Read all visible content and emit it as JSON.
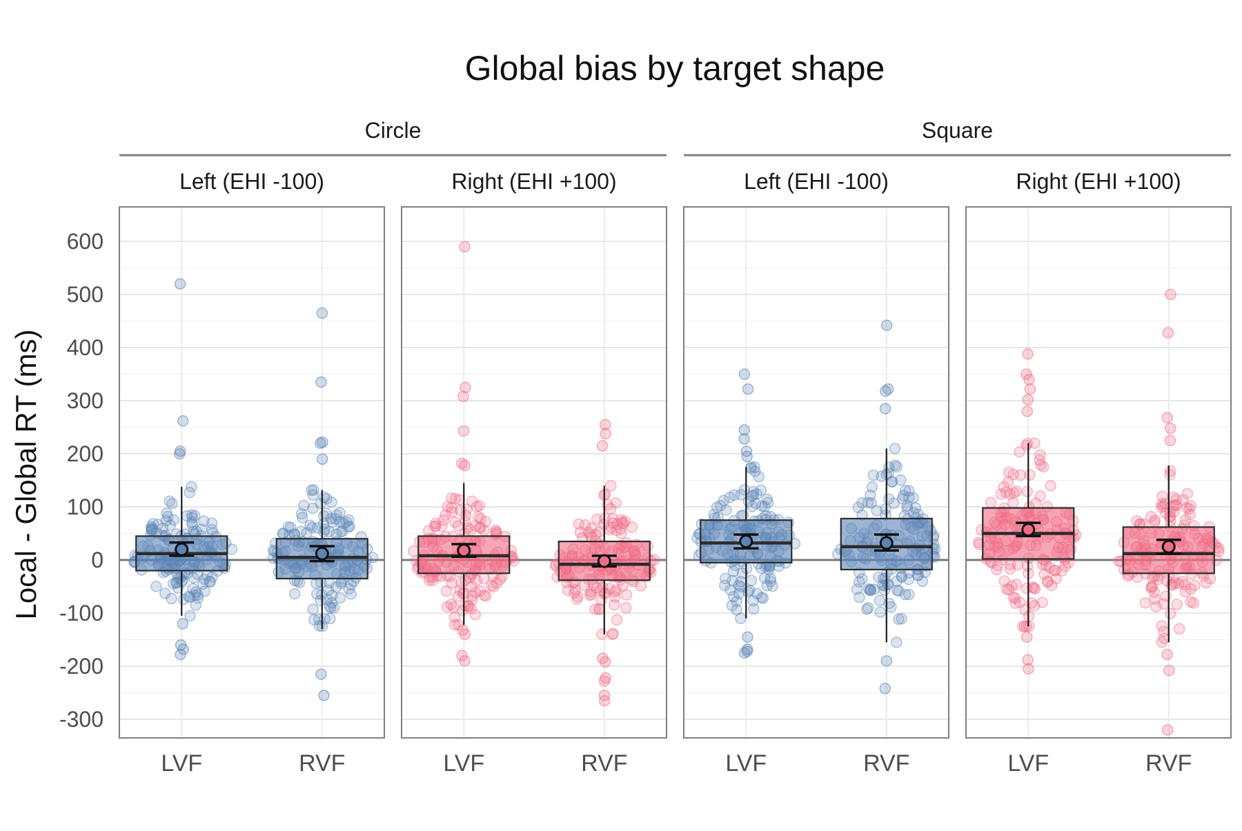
{
  "chart_data": {
    "type": "box",
    "title": "Global bias by target shape",
    "ylabel": "Local - Global RT (ms)",
    "xlabel": "",
    "ylim": [
      -335,
      665
    ],
    "y_ticks": [
      -300,
      -200,
      -100,
      0,
      100,
      200,
      300,
      400,
      500,
      600
    ],
    "grid": true,
    "reference_line_y": 0,
    "categories": [
      "LVF",
      "RVF"
    ],
    "colors": {
      "Left (EHI -100)": "#5b84b5",
      "Right (EHI +100)": "#f06b84"
    },
    "facets": [
      {
        "shape": "Circle",
        "panels": [
          {
            "handedness": "Left (EHI -100)",
            "boxes": [
              {
                "category": "LVF",
                "q1": -20,
                "median": 12,
                "q3": 45,
                "whisker_low": -105,
                "whisker_high": 138,
                "mean": 20,
                "ci": [
                  8,
                  33
                ],
                "outliers": [
                  520,
                  262,
                  205,
                  200,
                  -120,
                  -160,
                  -168,
                  -178
                ]
              },
              {
                "category": "RVF",
                "q1": -35,
                "median": 5,
                "q3": 40,
                "whisker_low": -130,
                "whisker_high": 132,
                "mean": 12,
                "ci": [
                  -2,
                  26
                ],
                "outliers": [
                  465,
                  335,
                  222,
                  220,
                  190,
                  -215,
                  -255
                ]
              }
            ]
          },
          {
            "handedness": "Right (EHI +100)",
            "boxes": [
              {
                "category": "LVF",
                "q1": -25,
                "median": 8,
                "q3": 45,
                "whisker_low": -122,
                "whisker_high": 145,
                "mean": 18,
                "ci": [
                  6,
                  30
                ],
                "outliers": [
                  590,
                  325,
                  308,
                  243,
                  182,
                  178,
                  -132,
                  -140,
                  -180,
                  -190
                ]
              },
              {
                "category": "RVF",
                "q1": -38,
                "median": -8,
                "q3": 35,
                "whisker_low": -140,
                "whisker_high": 140,
                "mean": -2,
                "ci": [
                  -12,
                  8
                ],
                "outliers": [
                  255,
                  238,
                  215,
                  -185,
                  -192,
                  -222,
                  -228,
                  -255,
                  -265
                ]
              }
            ]
          }
        ]
      },
      {
        "shape": "Square",
        "panels": [
          {
            "handedness": "Left (EHI -100)",
            "boxes": [
              {
                "category": "LVF",
                "q1": -5,
                "median": 32,
                "q3": 75,
                "whisker_low": -110,
                "whisker_high": 175,
                "mean": 35,
                "ci": [
                  22,
                  48
                ],
                "outliers": [
                  350,
                  322,
                  245,
                  228,
                  205,
                  195,
                  -145,
                  -168,
                  -172,
                  -175
                ]
              },
              {
                "category": "RVF",
                "q1": -18,
                "median": 25,
                "q3": 78,
                "whisker_low": -155,
                "whisker_high": 210,
                "mean": 32,
                "ci": [
                  18,
                  48
                ],
                "outliers": [
                  442,
                  322,
                  318,
                  285,
                  -190,
                  -242
                ]
              }
            ]
          },
          {
            "handedness": "Right (EHI +100)",
            "boxes": [
              {
                "category": "LVF",
                "q1": 2,
                "median": 50,
                "q3": 98,
                "whisker_low": -125,
                "whisker_high": 220,
                "mean": 57,
                "ci": [
                  45,
                  70
                ],
                "outliers": [
                  388,
                  350,
                  340,
                  322,
                  302,
                  280,
                  -145,
                  -188,
                  -205
                ]
              },
              {
                "category": "RVF",
                "q1": -25,
                "median": 12,
                "q3": 62,
                "whisker_low": -155,
                "whisker_high": 178,
                "mean": 25,
                "ci": [
                  12,
                  38
                ],
                "outliers": [
                  500,
                  428,
                  268,
                  248,
                  225,
                  -178,
                  -208,
                  -320
                ]
              }
            ]
          }
        ]
      }
    ]
  }
}
